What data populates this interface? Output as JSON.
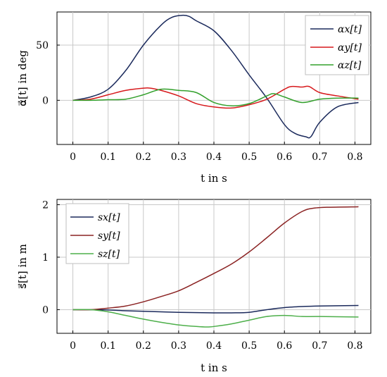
{
  "chart_data": [
    {
      "type": "line",
      "xlabel": "t in s",
      "ylabel": "α⃗[t] in deg",
      "xlim": [
        -0.045,
        0.845
      ],
      "ylim": [
        -40,
        80
      ],
      "xticks": [
        0,
        0.1,
        0.2,
        0.3,
        0.4,
        0.5,
        0.6,
        0.7,
        0.8
      ],
      "xtick_labels": [
        "0",
        "0.1",
        "0.2",
        "0.3",
        "0.4",
        "0.5",
        "0.6",
        "0.7",
        "0.8"
      ],
      "yticks": [
        0,
        50
      ],
      "ytick_labels": [
        "0",
        "50"
      ],
      "grid": true,
      "legend_position": "top-right",
      "series": [
        {
          "name": "αx[t]",
          "color": "#1b2a5c",
          "x": [
            0,
            0.05,
            0.1,
            0.15,
            0.2,
            0.25,
            0.28,
            0.31,
            0.33,
            0.35,
            0.4,
            0.45,
            0.5,
            0.55,
            0.6,
            0.63,
            0.66,
            0.675,
            0.7,
            0.75,
            0.81
          ],
          "y": [
            0,
            3,
            10,
            27,
            50,
            68,
            75,
            77,
            76,
            72,
            63,
            45,
            23,
            2,
            -22,
            -30,
            -33,
            -33,
            -20,
            -6,
            -2
          ]
        },
        {
          "name": "αy[t]",
          "color": "#d7191c",
          "x": [
            0,
            0.05,
            0.1,
            0.15,
            0.2,
            0.22,
            0.25,
            0.3,
            0.35,
            0.4,
            0.45,
            0.5,
            0.55,
            0.6,
            0.62,
            0.65,
            0.67,
            0.7,
            0.75,
            0.81
          ],
          "y": [
            0,
            1,
            5,
            9,
            11,
            11,
            9,
            4,
            -3,
            -6,
            -7,
            -4,
            1,
            10,
            12.5,
            12,
            12.5,
            7,
            4,
            1
          ]
        },
        {
          "name": "αz[t]",
          "color": "#33a02c",
          "x": [
            0,
            0.05,
            0.1,
            0.15,
            0.2,
            0.25,
            0.3,
            0.35,
            0.4,
            0.45,
            0.5,
            0.55,
            0.57,
            0.6,
            0.65,
            0.7,
            0.75,
            0.81
          ],
          "y": [
            0,
            0,
            0.5,
            1,
            5,
            10,
            9,
            7,
            -2,
            -5,
            -3,
            4,
            6,
            3,
            -2,
            1,
            2,
            2
          ]
        }
      ]
    },
    {
      "type": "line",
      "xlabel": "t in s",
      "ylabel": "s⃗[t] in m",
      "xlim": [
        -0.045,
        0.845
      ],
      "ylim": [
        -0.45,
        2.1
      ],
      "xticks": [
        0,
        0.1,
        0.2,
        0.3,
        0.4,
        0.5,
        0.6,
        0.7,
        0.8
      ],
      "xtick_labels": [
        "0",
        "0.1",
        "0.2",
        "0.3",
        "0.4",
        "0.5",
        "0.6",
        "0.7",
        "0.8"
      ],
      "yticks": [
        0,
        1,
        2
      ],
      "ytick_labels": [
        "0",
        "1",
        "2"
      ],
      "grid": true,
      "legend_position": "top-left",
      "series": [
        {
          "name": "sx[t]",
          "color": "#1b2a5c",
          "x": [
            0,
            0.05,
            0.1,
            0.15,
            0.2,
            0.3,
            0.4,
            0.45,
            0.5,
            0.55,
            0.6,
            0.65,
            0.7,
            0.81
          ],
          "y": [
            0,
            0,
            -0.005,
            -0.02,
            -0.03,
            -0.05,
            -0.06,
            -0.06,
            -0.05,
            0.0,
            0.04,
            0.06,
            0.07,
            0.08
          ]
        },
        {
          "name": "sy[t]",
          "color": "#8b2323",
          "x": [
            0,
            0.05,
            0.1,
            0.15,
            0.2,
            0.25,
            0.3,
            0.35,
            0.4,
            0.45,
            0.5,
            0.55,
            0.6,
            0.65,
            0.68,
            0.72,
            0.81
          ],
          "y": [
            0,
            0,
            0.03,
            0.07,
            0.15,
            0.25,
            0.36,
            0.52,
            0.69,
            0.87,
            1.1,
            1.37,
            1.65,
            1.87,
            1.93,
            1.95,
            1.96
          ]
        },
        {
          "name": "sz[t]",
          "color": "#4daf4a",
          "x": [
            0,
            0.05,
            0.1,
            0.15,
            0.2,
            0.25,
            0.3,
            0.35,
            0.38,
            0.4,
            0.45,
            0.5,
            0.55,
            0.6,
            0.65,
            0.7,
            0.81
          ],
          "y": [
            0,
            0,
            -0.04,
            -0.11,
            -0.18,
            -0.24,
            -0.29,
            -0.32,
            -0.33,
            -0.32,
            -0.27,
            -0.2,
            -0.13,
            -0.11,
            -0.13,
            -0.13,
            -0.14
          ]
        }
      ]
    }
  ]
}
